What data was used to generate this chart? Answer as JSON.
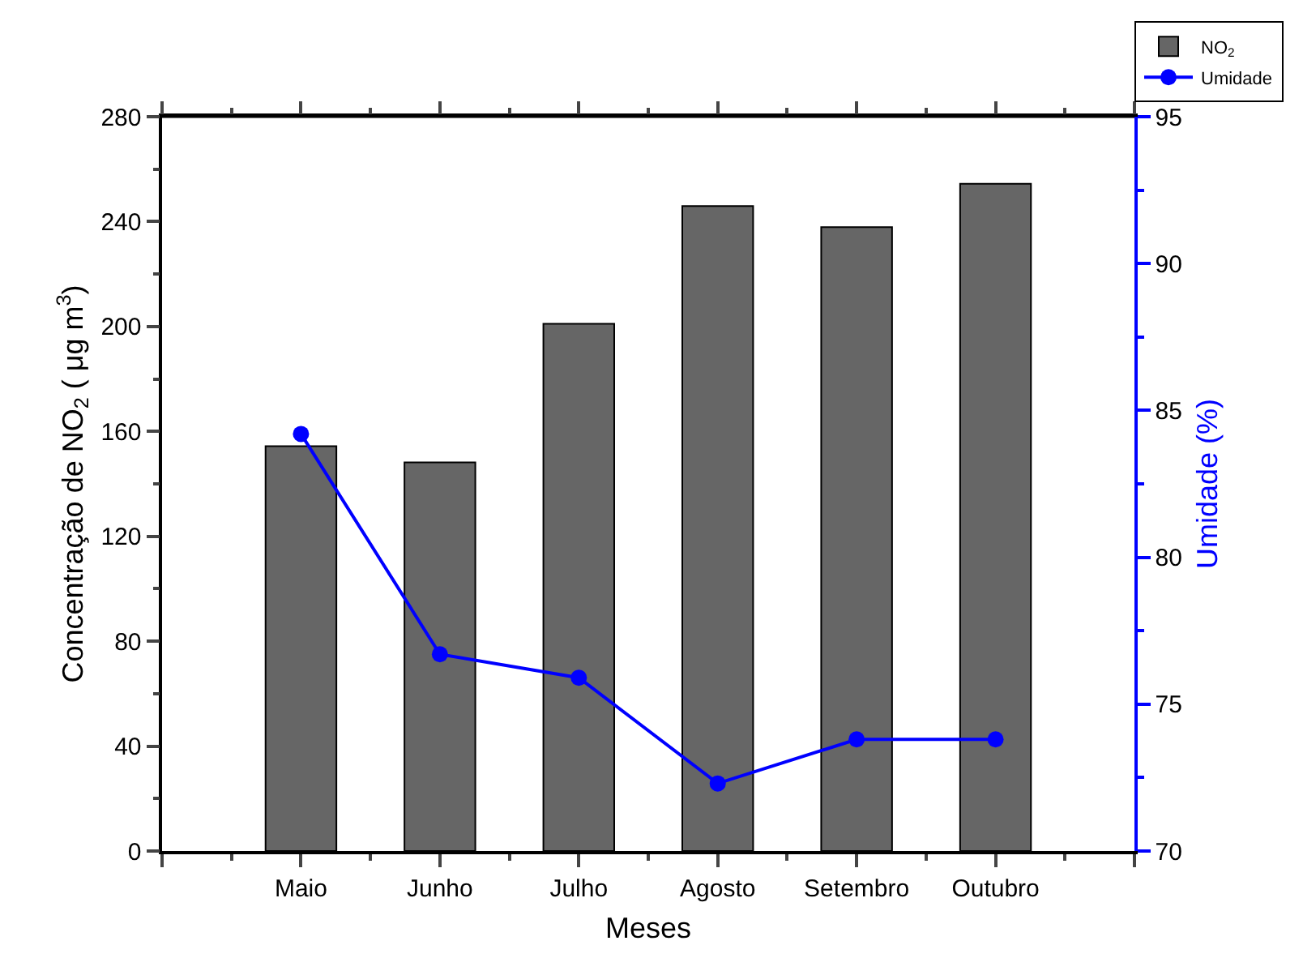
{
  "chart_data": {
    "type": "bar",
    "xlabel": "Meses",
    "ylabel": "Concentração de NO$_{2}$ ( μg m$^{3}$)",
    "y2label": "Umidade (%)",
    "categories": [
      "Maio",
      "Junho",
      "Julho",
      "Agosto",
      "Setembro",
      "Outubro"
    ],
    "series": [
      {
        "name": "NO$_{2}$",
        "color": "#666666",
        "values": [
          154.4,
          148.2,
          201.0,
          245.9,
          237.9,
          254.4
        ]
      },
      {
        "name": "Umidade",
        "type": "line",
        "axis": "y2",
        "color": "#0000ff",
        "marker": "circle",
        "line_style": "solid",
        "values": [
          84.2,
          76.7,
          75.9,
          72.3,
          73.8,
          73.8
        ]
      }
    ],
    "ylim": [
      0,
      280
    ],
    "yticks": [
      0,
      40,
      80,
      120,
      160,
      200,
      240,
      280
    ],
    "y2lim": [
      70,
      95
    ],
    "y2ticks": [
      70,
      75,
      80,
      85,
      90,
      95
    ],
    "legend": "top right"
  }
}
